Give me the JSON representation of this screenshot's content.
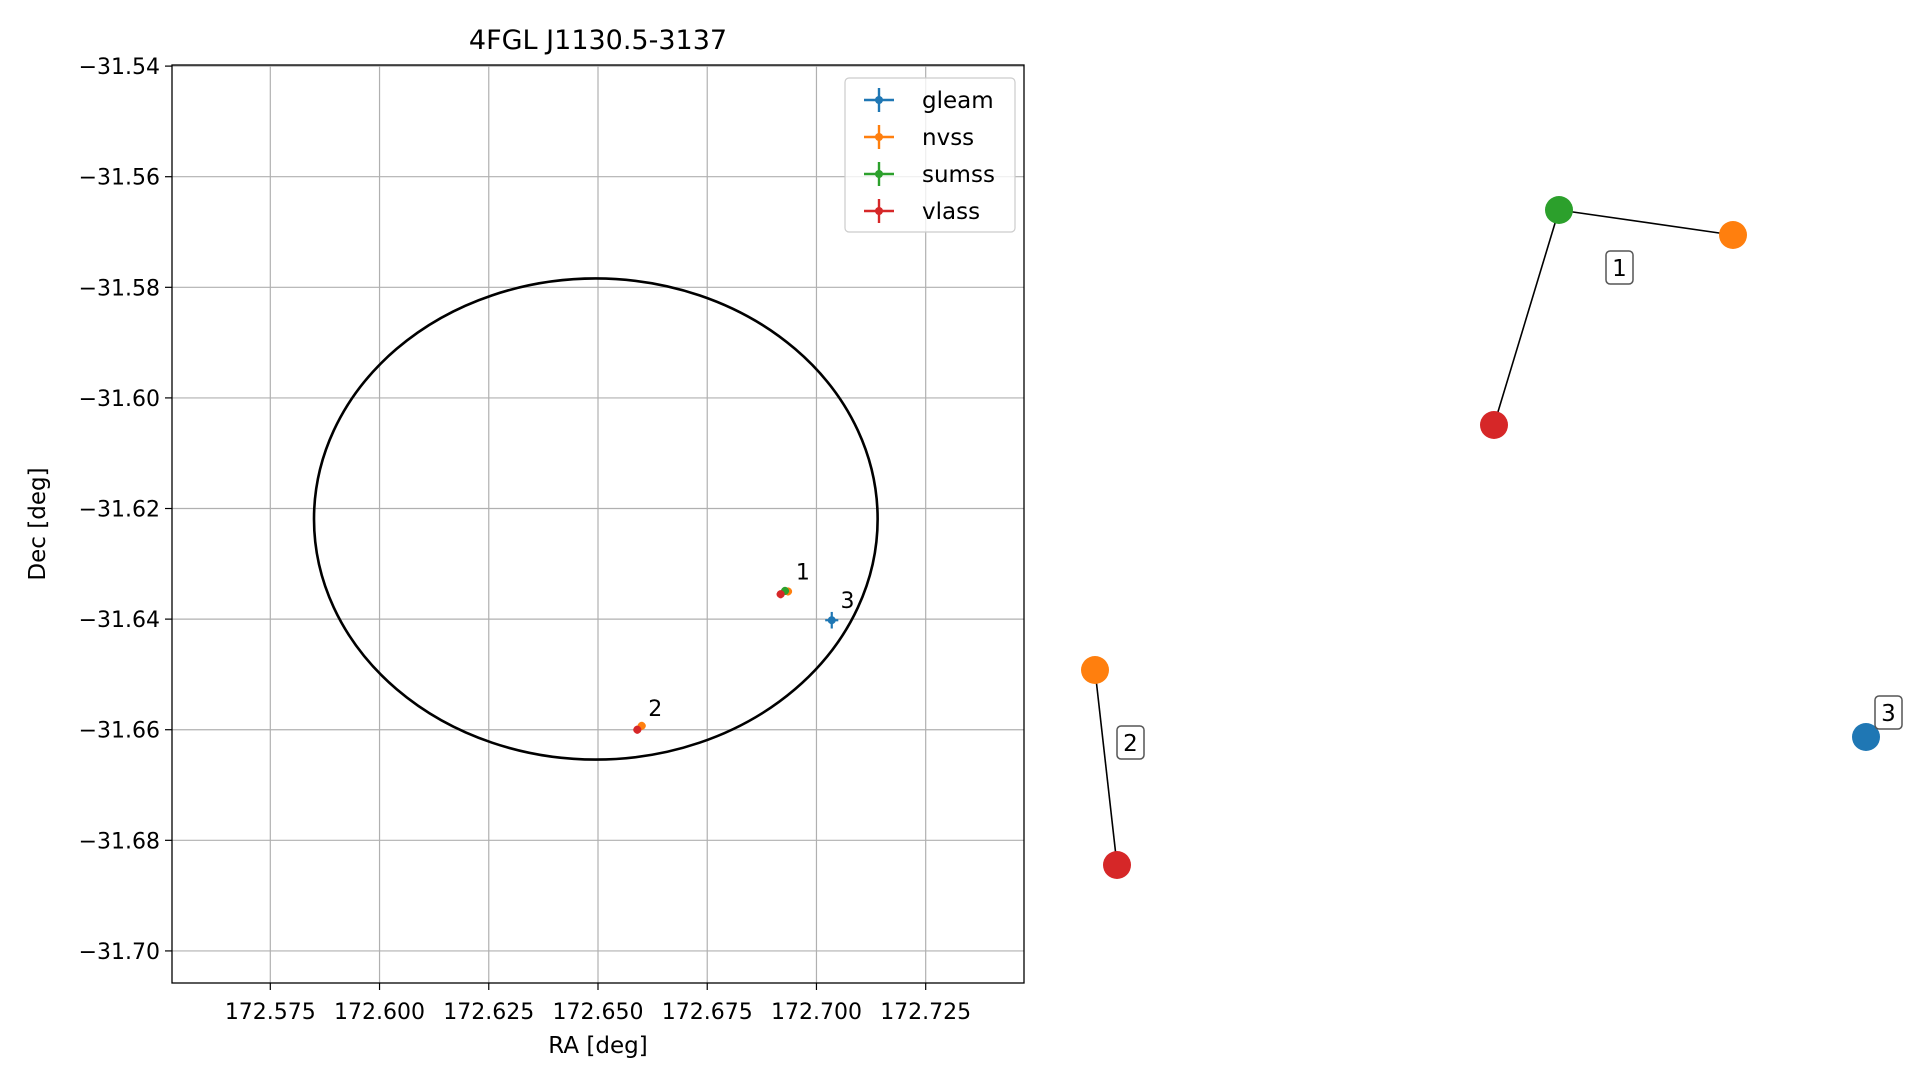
{
  "chart_data": [
    {
      "type": "scatter",
      "title": "4FGL J1130.5-3137",
      "xlabel": "RA [deg]",
      "ylabel": "Dec [deg]",
      "xlim": [
        172.5525,
        172.7475
      ],
      "ylim": [
        -31.7058,
        -31.5398
      ],
      "x_ticks": [
        172.575,
        172.6,
        172.625,
        172.65,
        172.675,
        172.7,
        172.725
      ],
      "x_tick_labels": [
        "172.575",
        "172.600",
        "172.625",
        "172.650",
        "172.675",
        "172.700",
        "172.725"
      ],
      "y_ticks": [
        -31.54,
        -31.56,
        -31.58,
        -31.6,
        -31.62,
        -31.64,
        -31.66,
        -31.68,
        -31.7
      ],
      "y_tick_labels": [
        "−31.54",
        "−31.56",
        "−31.58",
        "−31.60",
        "−31.62",
        "−31.64",
        "−31.66",
        "−31.68",
        "−31.70"
      ],
      "grid": true,
      "legend_position": "top-right",
      "series": [
        {
          "name": "gleam",
          "color": "#1f77b4",
          "points": [
            {
              "x": 172.7035,
              "y": -31.6402,
              "xerr": 0.0015,
              "yerr": 0.0015
            }
          ]
        },
        {
          "name": "nvss",
          "color": "#ff7f0e",
          "points": [
            {
              "x": 172.6935,
              "y": -31.635,
              "xerr": 0.0004,
              "yerr": 0.0004
            },
            {
              "x": 172.66,
              "y": -31.6593,
              "xerr": 0.0004,
              "yerr": 0.0004
            }
          ]
        },
        {
          "name": "sumss",
          "color": "#2ca02c",
          "points": [
            {
              "x": 172.6928,
              "y": -31.6349,
              "xerr": 0.0003,
              "yerr": 0.0003
            }
          ]
        },
        {
          "name": "vlass",
          "color": "#d62728",
          "points": [
            {
              "x": 172.6918,
              "y": -31.6355,
              "xerr": 0.0002,
              "yerr": 0.0002
            },
            {
              "x": 172.659,
              "y": -31.66,
              "xerr": 0.0002,
              "yerr": 0.0002
            }
          ]
        }
      ],
      "ellipse": {
        "center": [
          172.6495,
          -31.6219
        ],
        "semi_axis_ra": 0.0645,
        "semi_axis_dec": 0.0435,
        "angle_deg": 0
      },
      "annotations": [
        {
          "text": "1",
          "x": 172.6953,
          "y": -31.6328
        },
        {
          "text": "2",
          "x": 172.6615,
          "y": -31.6575
        },
        {
          "text": "3",
          "x": 172.7055,
          "y": -31.638
        }
      ]
    },
    {
      "type": "network",
      "nodes": [
        {
          "id": "g1-sumss",
          "color": "#2ca02c"
        },
        {
          "id": "g1-nvss",
          "color": "#ff7f0e"
        },
        {
          "id": "g1-vlass",
          "color": "#d62728"
        },
        {
          "id": "g2-nvss",
          "color": "#ff7f0e"
        },
        {
          "id": "g2-vlass",
          "color": "#d62728"
        },
        {
          "id": "g3-gleam",
          "color": "#1f77b4"
        }
      ],
      "edges": [
        {
          "source": "g1-sumss",
          "target": "g1-nvss"
        },
        {
          "source": "g1-sumss",
          "target": "g1-vlass"
        },
        {
          "source": "g2-nvss",
          "target": "g2-vlass"
        }
      ],
      "group_labels": [
        "1",
        "2",
        "3"
      ]
    }
  ]
}
